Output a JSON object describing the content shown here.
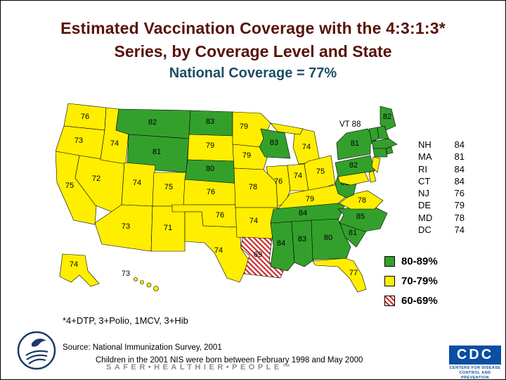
{
  "title": {
    "line1": "Estimated Vaccination Coverage with the 4:3:1:3*",
    "line2": "Series, by Coverage Level and State",
    "line3": "National Coverage = 77%"
  },
  "map": {
    "vt_callout": "VT 88"
  },
  "side_list": {
    "items": [
      {
        "state": "NH",
        "value": 84
      },
      {
        "state": "MA",
        "value": 81
      },
      {
        "state": "RI",
        "value": 84
      },
      {
        "state": "CT",
        "value": 84
      },
      {
        "state": "NJ",
        "value": 76
      },
      {
        "state": "DE",
        "value": 79
      },
      {
        "state": "MD",
        "value": 78
      },
      {
        "state": "DC",
        "value": 74
      }
    ]
  },
  "legend": {
    "items": [
      {
        "label": "80-89%",
        "color": "#33a02c",
        "pattern": "solid"
      },
      {
        "label": "70-79%",
        "color": "#ffee00",
        "pattern": "solid"
      },
      {
        "label": "60-69%",
        "color": "#cc2a2a",
        "pattern": "hatched"
      }
    ]
  },
  "footnote": "*4+DTP, 3+Polio, 1MCV, 3+Hib",
  "source": {
    "line1": "Source:  National Immunization Survey, 2001",
    "line2": "Children in the 2001 NIS were born between February 1998 and May 2000"
  },
  "tagline": "SAFER•HEALTHIER•PEOPLE™",
  "cdc_logo": {
    "acronym": "CDC",
    "caption_line1": "CENTERS FOR DISEASE",
    "caption_line2": "CONTROL AND PREVENTION"
  },
  "chart_data": {
    "type": "choropleth_map",
    "title": "Estimated Vaccination Coverage with the 4:3:1:3 Series, by Coverage Level and State",
    "national_coverage_pct": 77,
    "unit": "percent vaccinated (4:3:1:3 series)",
    "bands": [
      {
        "range": "80-89%",
        "style": "green"
      },
      {
        "range": "70-79%",
        "style": "yellow"
      },
      {
        "range": "60-69%",
        "style": "red-hatched"
      }
    ],
    "states": [
      {
        "id": "WA",
        "value": 76
      },
      {
        "id": "OR",
        "value": 73
      },
      {
        "id": "CA",
        "value": 75
      },
      {
        "id": "NV",
        "value": 72
      },
      {
        "id": "ID",
        "value": 74
      },
      {
        "id": "MT",
        "value": 82
      },
      {
        "id": "WY",
        "value": 81
      },
      {
        "id": "UT",
        "value": 74
      },
      {
        "id": "CO",
        "value": 75
      },
      {
        "id": "AZ",
        "value": 73
      },
      {
        "id": "NM",
        "value": 71
      },
      {
        "id": "ND",
        "value": 83
      },
      {
        "id": "SD",
        "value": 79
      },
      {
        "id": "NE",
        "value": 80
      },
      {
        "id": "KS",
        "value": 76
      },
      {
        "id": "OK",
        "value": 76
      },
      {
        "id": "TX",
        "value": 74
      },
      {
        "id": "MN",
        "value": 79
      },
      {
        "id": "IA",
        "value": 79
      },
      {
        "id": "MO",
        "value": 78
      },
      {
        "id": "AR",
        "value": 74
      },
      {
        "id": "LA",
        "value": 69
      },
      {
        "id": "WI",
        "value": 83
      },
      {
        "id": "IL",
        "value": 76
      },
      {
        "id": "IN",
        "value": 74
      },
      {
        "id": "MI",
        "value": 74
      },
      {
        "id": "OH",
        "value": 75
      },
      {
        "id": "KY",
        "value": 79
      },
      {
        "id": "TN",
        "value": 84
      },
      {
        "id": "MS",
        "value": 84
      },
      {
        "id": "AL",
        "value": 83
      },
      {
        "id": "GA",
        "value": 80
      },
      {
        "id": "FL",
        "value": 77
      },
      {
        "id": "SC",
        "value": 81
      },
      {
        "id": "NC",
        "value": 85
      },
      {
        "id": "VA",
        "value": 78
      },
      {
        "id": "WV",
        "value": 81
      },
      {
        "id": "PA",
        "value": 82
      },
      {
        "id": "NY",
        "value": 81
      },
      {
        "id": "ME",
        "value": 82
      },
      {
        "id": "VT",
        "value": 88
      },
      {
        "id": "NH",
        "value": 84
      },
      {
        "id": "MA",
        "value": 81
      },
      {
        "id": "RI",
        "value": 84
      },
      {
        "id": "CT",
        "value": 84
      },
      {
        "id": "NJ",
        "value": 76
      },
      {
        "id": "DE",
        "value": 79
      },
      {
        "id": "MD",
        "value": 78
      },
      {
        "id": "DC",
        "value": 74
      },
      {
        "id": "AK",
        "value": 74
      },
      {
        "id": "HI",
        "value": 73
      }
    ]
  }
}
